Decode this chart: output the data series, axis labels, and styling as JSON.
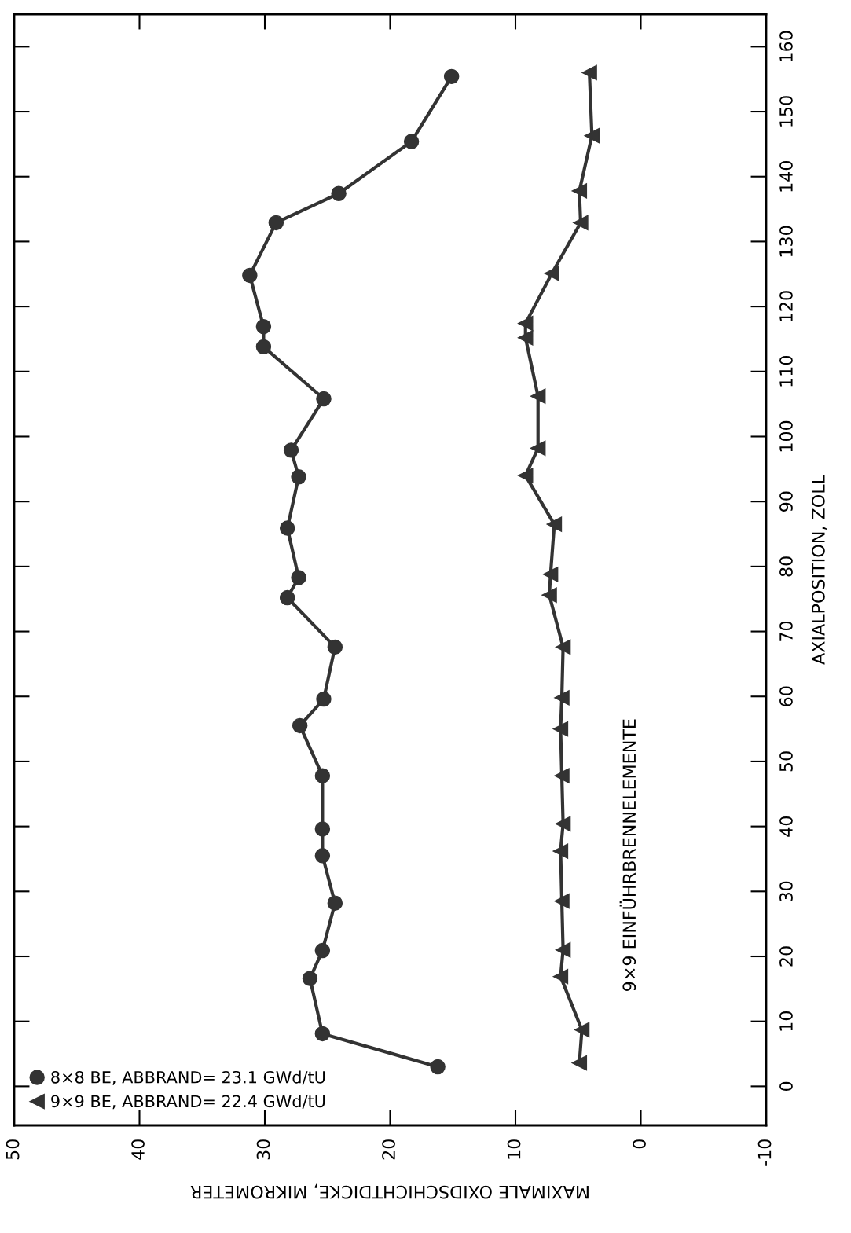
{
  "chart_data": {
    "type": "line",
    "xlabel": "MAXIMALE OXIDSCHICHTDICKE, MIKROMETER",
    "ylabel": "AXIALPOSITION, ZOLL",
    "xlim": [
      50,
      -10
    ],
    "xticks": [
      50,
      40,
      30,
      20,
      10,
      0,
      -10
    ],
    "ylim": [
      -6,
      165
    ],
    "yticks": [
      0,
      10,
      20,
      30,
      40,
      50,
      60,
      70,
      80,
      90,
      100,
      110,
      120,
      130,
      140,
      150,
      160
    ],
    "grid": false,
    "legend": "bottom left",
    "line_style": "solid",
    "annotations": [
      "9×9 EINFÜHRBRENNELEMENTE"
    ],
    "series": [
      {
        "name": "8×8 BE, ABBRAND= 23.1 GWd/tU",
        "color": "#333333",
        "marker": "circle",
        "x": [
          16.2,
          25.4,
          26.4,
          25.4,
          24.4,
          25.4,
          25.4,
          25.4,
          27.2,
          25.3,
          24.4,
          28.2,
          27.3,
          28.2,
          27.3,
          27.9,
          25.3,
          30.1,
          30.1,
          31.2,
          29.1,
          24.1,
          18.3,
          15.1
        ],
        "values": [
          3.0,
          8.1,
          16.6,
          20.9,
          28.2,
          35.5,
          39.6,
          47.8,
          55.5,
          59.6,
          67.6,
          75.2,
          78.3,
          85.9,
          93.8,
          97.9,
          105.8,
          113.8,
          116.9,
          124.8,
          132.9,
          137.4,
          145.4,
          155.4
        ]
      },
      {
        "name": "9×9 BE, ABBRAND= 22.4 GWd/tU",
        "color": "#333333",
        "marker": "triangle",
        "x": [
          4.9,
          4.7,
          6.4,
          6.2,
          6.3,
          6.4,
          6.2,
          6.3,
          6.4,
          6.3,
          6.2,
          7.3,
          7.2,
          6.9,
          9.2,
          8.2,
          8.2,
          9.2,
          9.2,
          7.1,
          4.8,
          4.9,
          3.9,
          4.1
        ],
        "values": [
          3.6,
          8.7,
          16.9,
          21.0,
          28.5,
          36.2,
          40.4,
          47.8,
          55.0,
          59.8,
          67.6,
          75.6,
          78.8,
          86.5,
          94.0,
          98.2,
          106.2,
          115.2,
          117.4,
          125.1,
          132.9,
          137.8,
          146.3,
          156.0
        ]
      }
    ]
  }
}
